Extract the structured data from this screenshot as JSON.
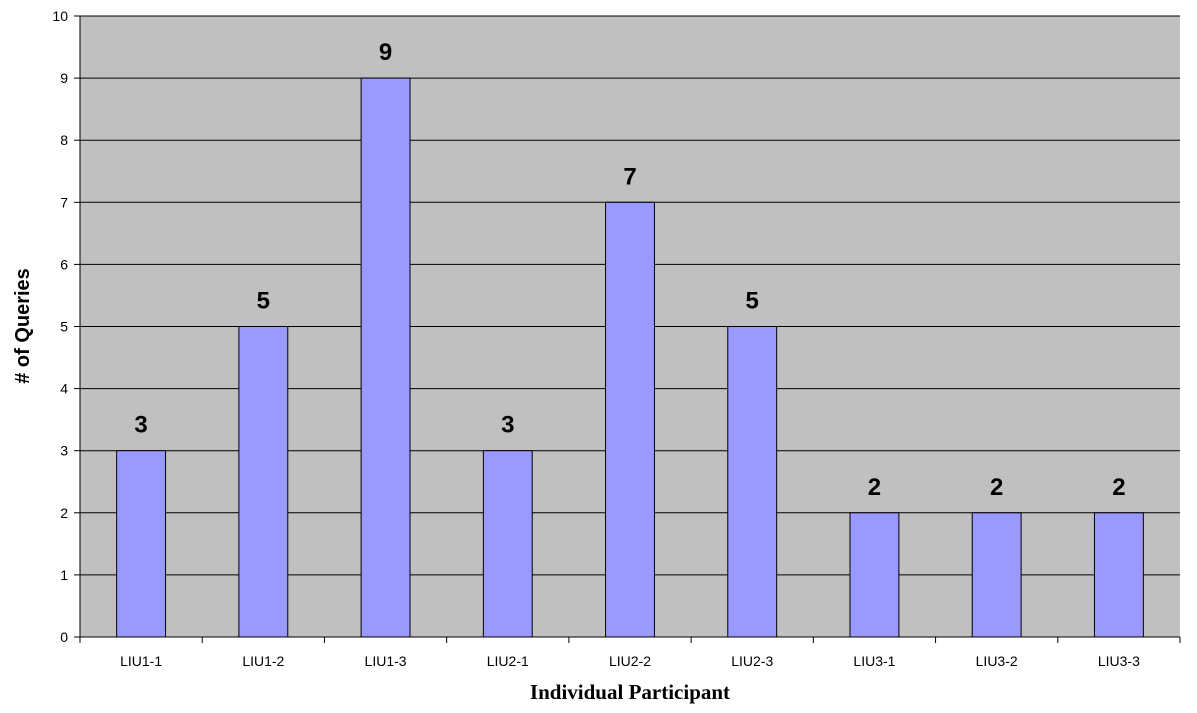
{
  "chart_data": {
    "type": "bar",
    "categories": [
      "LIU1-1",
      "LIU1-2",
      "LIU1-3",
      "LIU2-1",
      "LIU2-2",
      "LIU2-3",
      "LIU3-1",
      "LIU3-2",
      "LIU3-3"
    ],
    "values": [
      3,
      5,
      9,
      3,
      7,
      5,
      2,
      2,
      2
    ],
    "title": "",
    "xlabel": "Individual Participant",
    "ylabel": "# of Queries",
    "ylim": [
      0,
      10
    ],
    "yticks": [
      0,
      1,
      2,
      3,
      4,
      5,
      6,
      7,
      8,
      9,
      10
    ],
    "grid": true,
    "data_labels": true,
    "colors": {
      "plot_background": "#c0c0c0",
      "bar_fill": "#9999ff",
      "bar_stroke": "#000000",
      "grid": "#000000"
    }
  }
}
